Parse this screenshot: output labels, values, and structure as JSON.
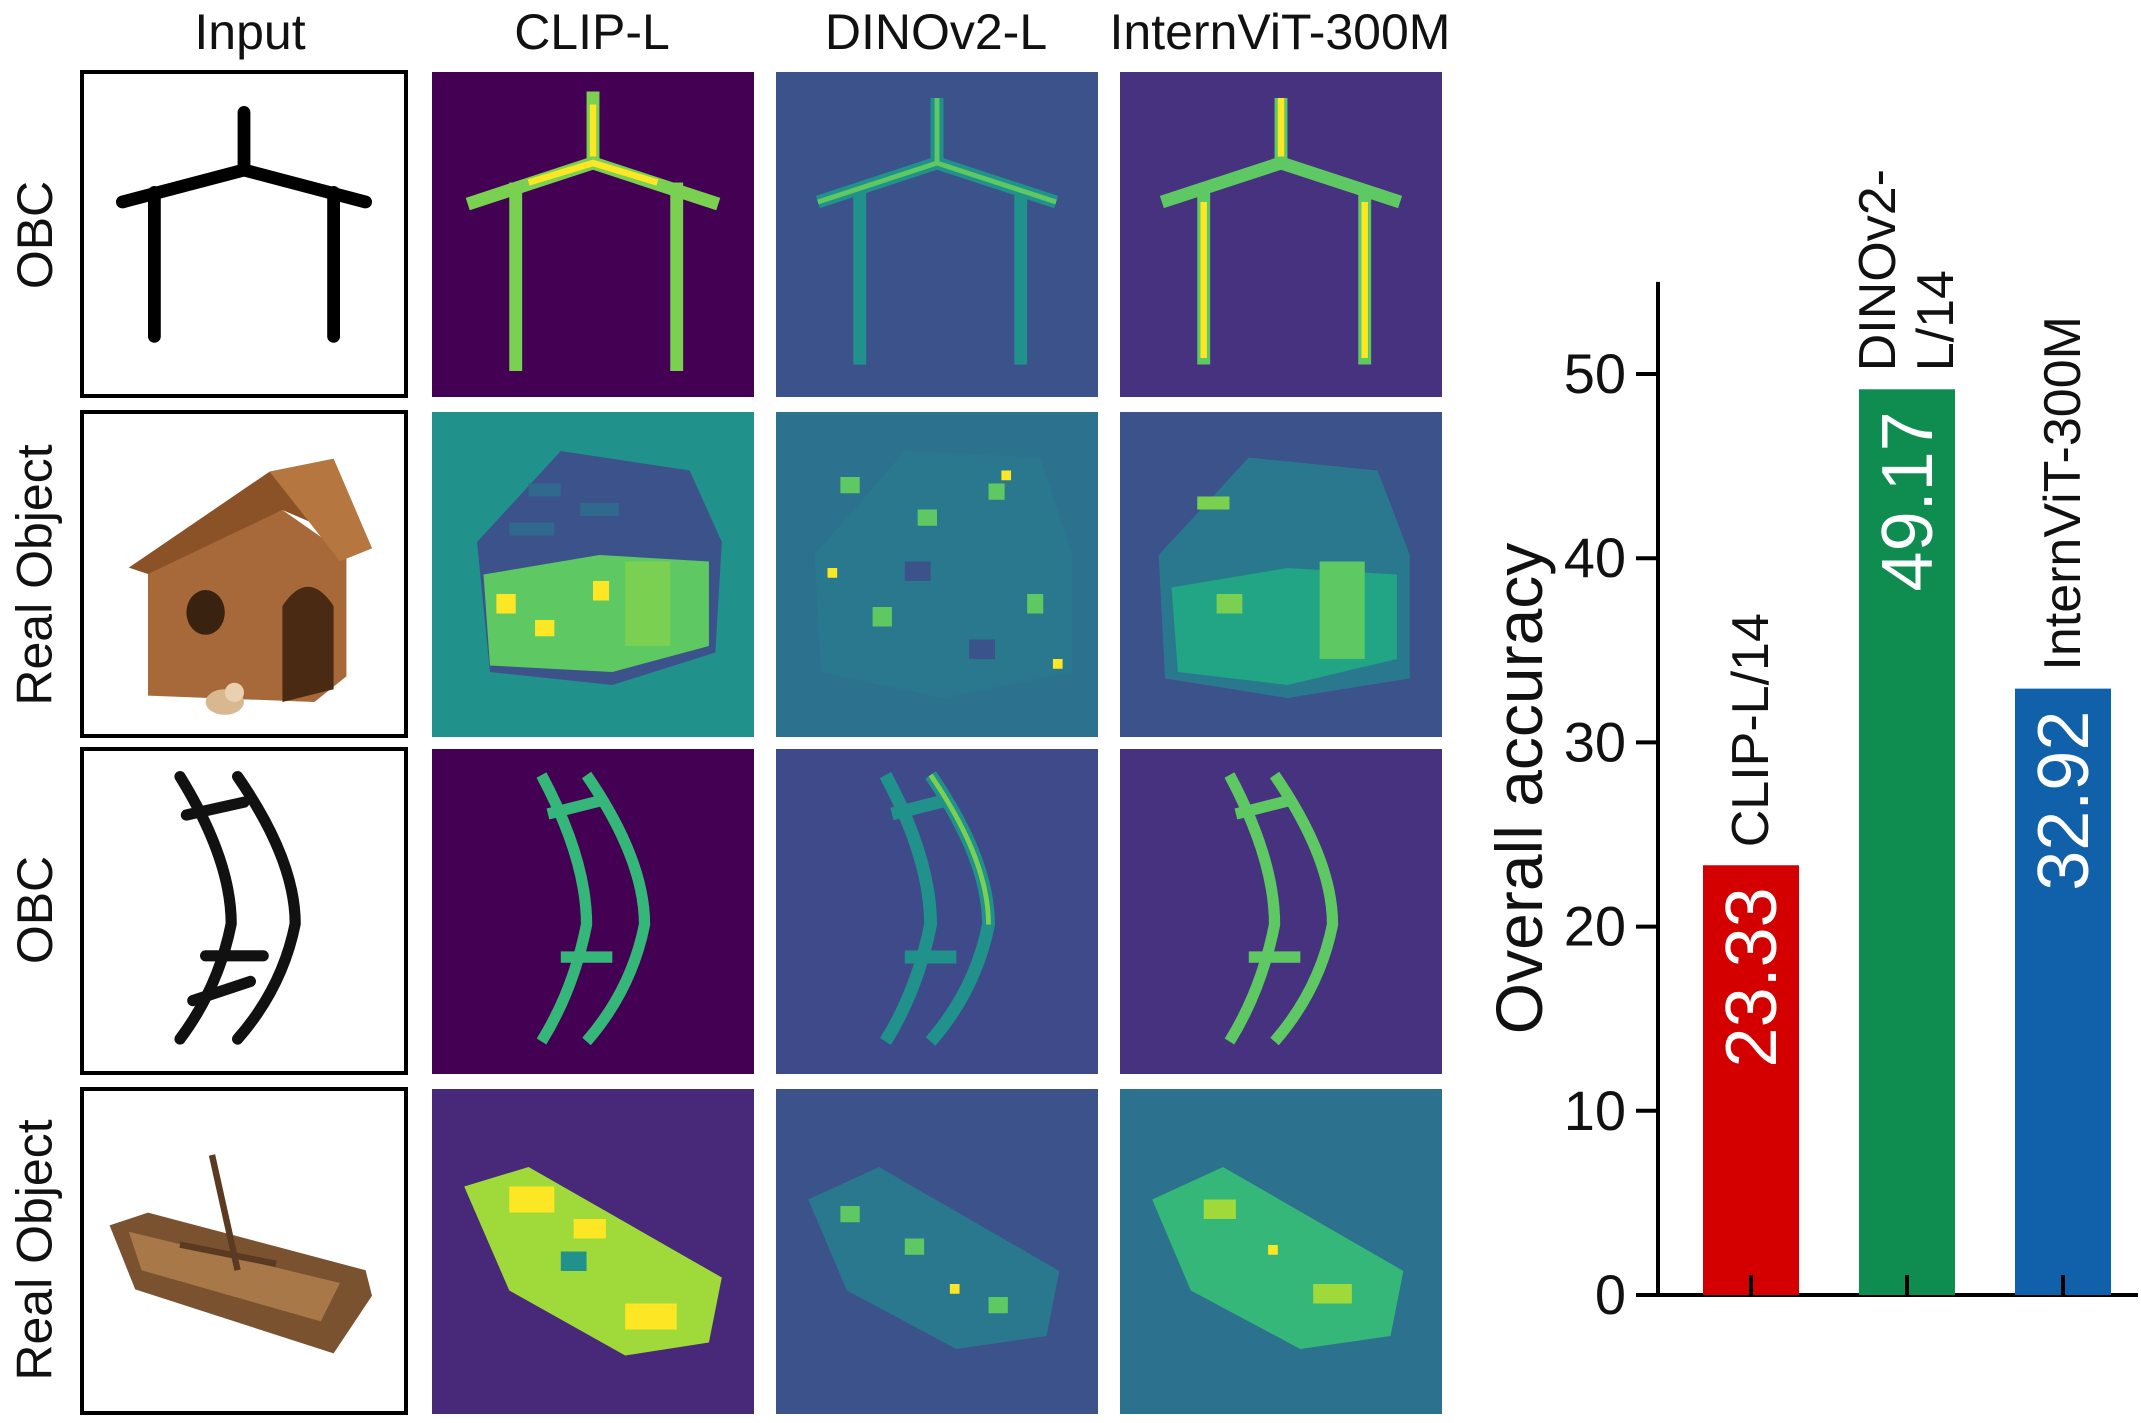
{
  "figure": {
    "column_headers": [
      "Input",
      "CLIP-L",
      "DINOv2-L",
      "InternViT-300M"
    ],
    "row_labels": [
      "OBC",
      "Real Object",
      "OBC",
      "Real Object"
    ],
    "rows": [
      {
        "type": "obc",
        "subject": "house-glyph"
      },
      {
        "type": "real-object",
        "subject": "wooden-doghouse"
      },
      {
        "type": "obc",
        "subject": "boat-glyph"
      },
      {
        "type": "real-object",
        "subject": "wooden-rowboat"
      }
    ],
    "colors": {
      "viridis_low": "#440154",
      "viridis_mid": "#21918c",
      "viridis_high": "#fde725"
    }
  },
  "chart_data": {
    "type": "bar",
    "categories": [
      "CLIP-L/14",
      "DINOv2-L/14",
      "InternViT-300M"
    ],
    "category_labels": [
      [
        "CLIP-L/14"
      ],
      [
        "DINOv2-",
        "L/14"
      ],
      [
        "InternViT-300M"
      ]
    ],
    "values": [
      23.33,
      49.17,
      32.92
    ],
    "value_labels": [
      "23.33",
      "49.17",
      "32.92"
    ],
    "colors": [
      "#d40000",
      "#0f8c50",
      "#1060aa"
    ],
    "title": "",
    "xlabel": "",
    "ylabel": "Overall accuracy",
    "ylim": [
      0,
      55
    ],
    "yticks": [
      0,
      10,
      20,
      30,
      40,
      50
    ],
    "grid": false
  }
}
